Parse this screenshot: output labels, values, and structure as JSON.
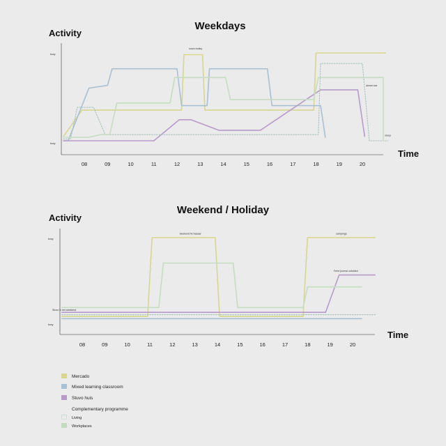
{
  "chart_data": [
    {
      "type": "line",
      "title": "Weekdays",
      "ylabel": "Activity",
      "xlabel": "Time",
      "ytick_labels": {
        "high": "busy",
        "low": "busy"
      },
      "categories": [
        "08",
        "09",
        "10",
        "11",
        "12",
        "13",
        "14",
        "15",
        "16",
        "17",
        "18",
        "19",
        "20"
      ],
      "xlim": [
        7,
        21
      ],
      "ylim": [
        0,
        1
      ],
      "annotations": [
        {
          "text": "lunch trolley",
          "x": 12.8,
          "y": 1.04
        },
        {
          "text": "dinner bar",
          "x": 20.4,
          "y": 0.62
        },
        {
          "text": "sleep",
          "x": 21.1,
          "y": 0.05
        }
      ],
      "series": [
        {
          "name": "Mercado",
          "color": "#d8d68c",
          "style": "solid",
          "points": [
            [
              7.1,
              0.05
            ],
            [
              7.9,
              0.35
            ],
            [
              12.2,
              0.35
            ],
            [
              12.3,
              0.98
            ],
            [
              13.1,
              0.98
            ],
            [
              13.2,
              0.35
            ],
            [
              17.9,
              0.35
            ],
            [
              18.0,
              1.0
            ],
            [
              21.0,
              1.0
            ]
          ]
        },
        {
          "name": "Mixed learning classroom",
          "color": "#a9bfd2",
          "style": "solid",
          "points": [
            [
              7.1,
              0.0
            ],
            [
              7.3,
              0.0
            ],
            [
              8.2,
              0.6
            ],
            [
              9.0,
              0.63
            ],
            [
              9.2,
              0.82
            ],
            [
              12.0,
              0.82
            ],
            [
              12.2,
              0.4
            ],
            [
              13.3,
              0.4
            ],
            [
              13.4,
              0.82
            ],
            [
              15.9,
              0.82
            ],
            [
              16.1,
              0.4
            ],
            [
              18.2,
              0.4
            ],
            [
              18.4,
              0.04
            ]
          ]
        },
        {
          "name": "Stuvo huis",
          "color": "#b69bca",
          "style": "solid",
          "points": [
            [
              7.1,
              0.0
            ],
            [
              11.0,
              0.0
            ],
            [
              12.1,
              0.24
            ],
            [
              12.6,
              0.24
            ],
            [
              13.8,
              0.12
            ],
            [
              15.6,
              0.12
            ],
            [
              18.2,
              0.58
            ],
            [
              19.8,
              0.58
            ],
            [
              20.1,
              0.05
            ]
          ]
        },
        {
          "name": "Living",
          "color": "#a3c0bd",
          "style": "dotted",
          "points": [
            [
              7.1,
              0.02
            ],
            [
              7.4,
              0.02
            ],
            [
              7.7,
              0.38
            ],
            [
              8.4,
              0.38
            ],
            [
              8.9,
              0.07
            ],
            [
              18.1,
              0.07
            ],
            [
              18.2,
              0.88
            ],
            [
              20.0,
              0.88
            ],
            [
              20.3,
              0.0
            ],
            [
              21.1,
              0.0
            ]
          ]
        },
        {
          "name": "Workplaces",
          "color": "#c6dcc2",
          "style": "solid",
          "points": [
            [
              7.1,
              0.04
            ],
            [
              8.2,
              0.04
            ],
            [
              8.7,
              0.07
            ],
            [
              9.1,
              0.07
            ],
            [
              9.4,
              0.43
            ],
            [
              11.7,
              0.43
            ],
            [
              11.9,
              0.72
            ],
            [
              14.1,
              0.72
            ],
            [
              14.3,
              0.47
            ],
            [
              17.9,
              0.47
            ],
            [
              18.1,
              0.72
            ],
            [
              20.9,
              0.72
            ],
            [
              20.9,
              0.0
            ]
          ]
        }
      ]
    },
    {
      "type": "line",
      "title": "Weekend / Holiday",
      "ylabel": "Activity",
      "xlabel": "Time",
      "ytick_labels": {
        "high": "busy",
        "low": "busy"
      },
      "categories": [
        "08",
        "09",
        "10",
        "11",
        "12",
        "13",
        "14",
        "15",
        "16",
        "17",
        "18",
        "19",
        "20"
      ],
      "xlim": [
        7,
        21
      ],
      "ylim": [
        0,
        1
      ],
      "annotations": [
        {
          "text": "weekend fix bazaar",
          "x": 12.8,
          "y": 1.04
        },
        {
          "text": "campings",
          "x": 19.5,
          "y": 1.04
        },
        {
          "text": "Stuvo in het weekend",
          "x": 7.2,
          "y": 0.08
        },
        {
          "text": "Feed journal unfolded",
          "x": 19.7,
          "y": 0.57
        }
      ],
      "series": [
        {
          "name": "Mercado",
          "color": "#d8d68c",
          "style": "solid",
          "points": [
            [
              7.1,
              0.01
            ],
            [
              10.9,
              0.01
            ],
            [
              11.1,
              1.0
            ],
            [
              13.9,
              1.0
            ],
            [
              14.1,
              0.01
            ],
            [
              17.8,
              0.01
            ],
            [
              18.0,
              1.0
            ],
            [
              21.0,
              1.0
            ]
          ]
        },
        {
          "name": "Mixed learning classroom",
          "color": "#a9bfd2",
          "style": "solid",
          "points": [
            [
              7.1,
              -0.02
            ],
            [
              20.4,
              -0.02
            ]
          ]
        },
        {
          "name": "Stuvo huis",
          "color": "#b69bca",
          "style": "solid",
          "points": [
            [
              7.1,
              0.06
            ],
            [
              18.8,
              0.06
            ],
            [
              19.4,
              0.53
            ],
            [
              21.0,
              0.53
            ]
          ]
        },
        {
          "name": "Living",
          "color": "#a3c0bd",
          "style": "dotted",
          "points": [
            [
              7.1,
              0.03
            ],
            [
              21.0,
              0.03
            ]
          ]
        },
        {
          "name": "Workplaces",
          "color": "#c6dcc2",
          "style": "solid",
          "points": [
            [
              7.1,
              0.12
            ],
            [
              11.4,
              0.12
            ],
            [
              11.6,
              0.68
            ],
            [
              14.7,
              0.68
            ],
            [
              14.9,
              0.12
            ],
            [
              17.8,
              0.12
            ],
            [
              18.0,
              0.38
            ],
            [
              20.4,
              0.38
            ]
          ]
        }
      ]
    }
  ],
  "legend": [
    {
      "label": "Mercado",
      "color": "#d8d68c",
      "style": "fill"
    },
    {
      "label": "Mixed learning classroom",
      "color": "#a9bfd2",
      "style": "fill"
    },
    {
      "label": "Stuvo huis",
      "color": "#b69bca",
      "style": "fill"
    },
    {
      "label": "Complementary programme",
      "color": "",
      "style": "heading"
    },
    {
      "label": "Living",
      "color": "#a3c0bd",
      "style": "dotted"
    },
    {
      "label": "Workplaces",
      "color": "#c6dcc2",
      "style": "fill"
    }
  ]
}
